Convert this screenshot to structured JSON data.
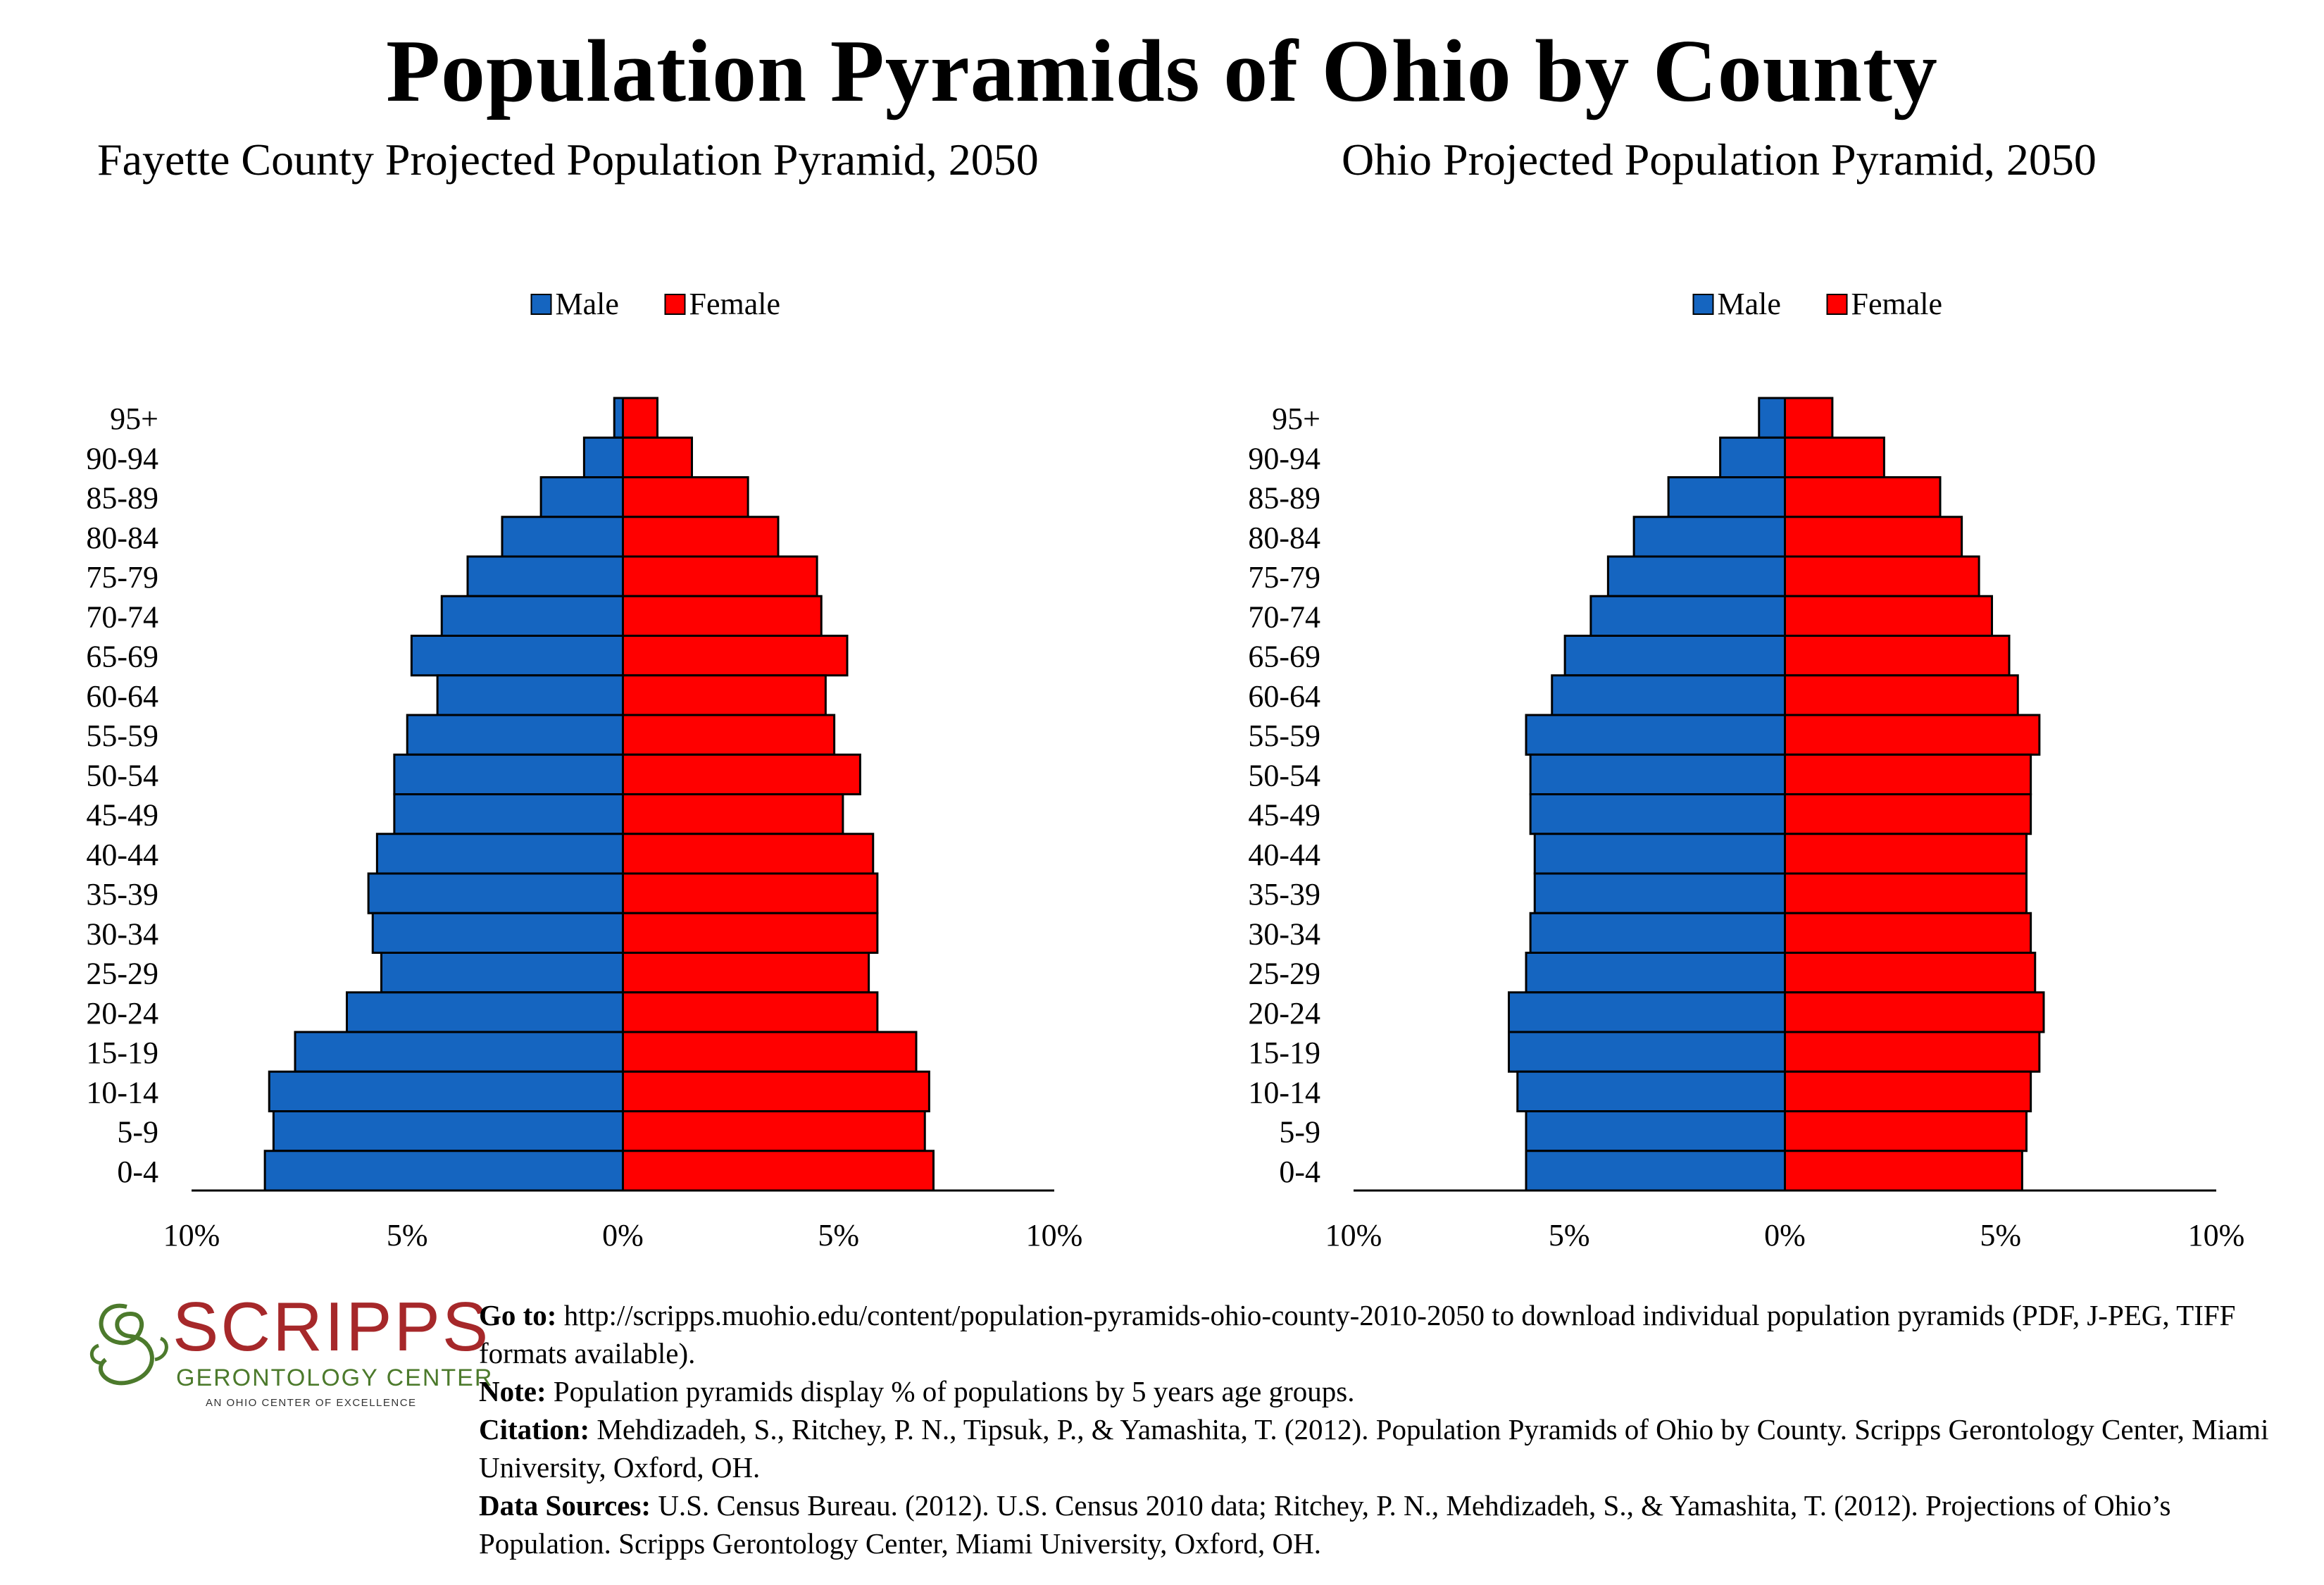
{
  "title": "Population Pyramids of Ohio by County",
  "colors": {
    "male": "#1565c0",
    "female": "#ff0000",
    "axis": "#000000"
  },
  "chart_data": [
    {
      "type": "bar",
      "title": "Fayette County Projected Population Pyramid, 2050",
      "orientation": "horizontal-pyramid",
      "legend": [
        "Male",
        "Female"
      ],
      "legend_position": "top-center",
      "categories": [
        "95+",
        "90-94",
        "85-89",
        "80-84",
        "75-79",
        "70-74",
        "65-69",
        "60-64",
        "55-59",
        "50-54",
        "45-49",
        "40-44",
        "35-39",
        "30-34",
        "25-29",
        "20-24",
        "15-19",
        "10-14",
        "5-9",
        "0-4"
      ],
      "series": [
        {
          "name": "Male",
          "values": [
            0.2,
            0.9,
            1.9,
            2.8,
            3.6,
            4.2,
            4.9,
            4.3,
            5.0,
            5.3,
            5.3,
            5.7,
            5.9,
            5.8,
            5.6,
            6.4,
            7.6,
            8.2,
            8.1,
            8.3
          ]
        },
        {
          "name": "Female",
          "values": [
            0.8,
            1.6,
            2.9,
            3.6,
            4.5,
            4.6,
            5.2,
            4.7,
            4.9,
            5.5,
            5.1,
            5.8,
            5.9,
            5.9,
            5.7,
            5.9,
            6.8,
            7.1,
            7.0,
            7.2
          ]
        }
      ],
      "xlim": [
        -10,
        10
      ],
      "x_ticks": [
        "10%",
        "5%",
        "0%",
        "5%",
        "10%"
      ],
      "grid": false
    },
    {
      "type": "bar",
      "title": "Ohio Projected Population Pyramid, 2050",
      "orientation": "horizontal-pyramid",
      "legend": [
        "Male",
        "Female"
      ],
      "legend_position": "top-center",
      "categories": [
        "95+",
        "90-94",
        "85-89",
        "80-84",
        "75-79",
        "70-74",
        "65-69",
        "60-64",
        "55-59",
        "50-54",
        "45-49",
        "40-44",
        "35-39",
        "30-34",
        "25-29",
        "20-24",
        "15-19",
        "10-14",
        "5-9",
        "0-4"
      ],
      "series": [
        {
          "name": "Male",
          "values": [
            0.6,
            1.5,
            2.7,
            3.5,
            4.1,
            4.5,
            5.1,
            5.4,
            6.0,
            5.9,
            5.9,
            5.8,
            5.8,
            5.9,
            6.0,
            6.4,
            6.4,
            6.2,
            6.0,
            6.0
          ]
        },
        {
          "name": "Female",
          "values": [
            1.1,
            2.3,
            3.6,
            4.1,
            4.5,
            4.8,
            5.2,
            5.4,
            5.9,
            5.7,
            5.7,
            5.6,
            5.6,
            5.7,
            5.8,
            6.0,
            5.9,
            5.7,
            5.6,
            5.5
          ]
        }
      ],
      "xlim": [
        -10,
        10
      ],
      "x_ticks": [
        "10%",
        "5%",
        "0%",
        "5%",
        "10%"
      ],
      "grid": false
    }
  ],
  "logo": {
    "name": "SCRIPPS",
    "subtitle": "GERONTOLOGY CENTER",
    "tagline": "AN OHIO CENTER OF EXCELLENCE"
  },
  "footer": {
    "goto_label": "Go to:",
    "goto_text": "http://scripps.muohio.edu/content/population-pyramids-ohio-county-2010-2050 to download individual population pyramids (PDF, J-PEG, TIFF formats available).",
    "note_label": "Note:",
    "note_text": "Population pyramids display % of populations by 5 years age groups.",
    "citation_label": "Citation:",
    "citation_text": "Mehdizadeh, S., Ritchey, P. N., Tipsuk, P., & Yamashita, T. (2012). Population Pyramids of Ohio by County. Scripps Gerontology Center, Miami University, Oxford, OH.",
    "sources_label": "Data Sources:",
    "sources_text": "U.S. Census Bureau. (2012). U.S. Census 2010 data; Ritchey, P. N., Mehdizadeh, S., & Yamashita, T. (2012). Projections of Ohio’s Population. Scripps Gerontology Center, Miami University, Oxford, OH."
  }
}
